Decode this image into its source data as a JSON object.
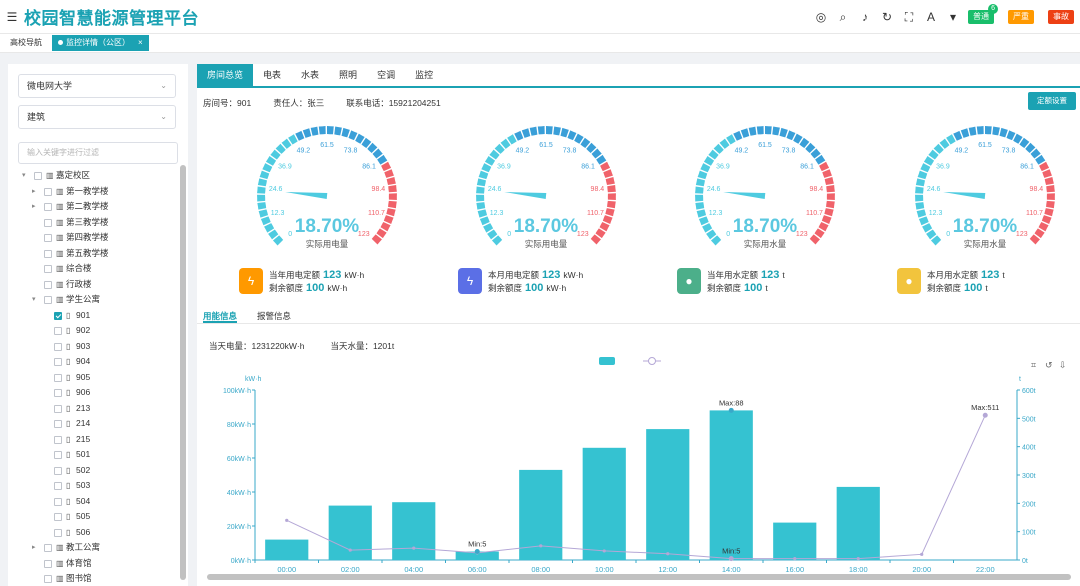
{
  "app": {
    "title": "校园智慧能源管理平台",
    "menu_icon": "menu-icon",
    "toolbar_icons": [
      "circle-icon",
      "search-icon",
      "volume-icon",
      "refresh-icon",
      "fullscreen-icon",
      "font-icon",
      "shirt-icon"
    ],
    "buttons": [
      {
        "label": "普通",
        "color": "#19be6b",
        "count": "6"
      },
      {
        "label": "严重",
        "color": "#ff9900",
        "count": ""
      },
      {
        "label": "事故",
        "color": "#ed4014",
        "count": ""
      }
    ]
  },
  "page_tabs": [
    {
      "label": "高校导航",
      "active": false
    },
    {
      "label": "监控详情（公区）",
      "active": true,
      "close": "×"
    }
  ],
  "sidebar": {
    "school": "微电网大学",
    "category": "建筑",
    "search_placeholder": "输入关键字进行过滤",
    "tree": [
      {
        "label": "嘉定校区",
        "level": 0,
        "arrow": "▾",
        "icon": "building"
      },
      {
        "label": "第一教学楼",
        "level": 1,
        "arrow": "▸",
        "icon": "building"
      },
      {
        "label": "第二教学楼",
        "level": 1,
        "arrow": "▸",
        "icon": "building"
      },
      {
        "label": "第三教学楼",
        "level": 1,
        "arrow": "",
        "icon": "building"
      },
      {
        "label": "第四教学楼",
        "level": 1,
        "arrow": "",
        "icon": "building"
      },
      {
        "label": "第五教学楼",
        "level": 1,
        "arrow": "",
        "icon": "building"
      },
      {
        "label": "综合楼",
        "level": 1,
        "arrow": "",
        "icon": "building"
      },
      {
        "label": "行政楼",
        "level": 1,
        "arrow": "",
        "icon": "building"
      },
      {
        "label": "学生公寓",
        "level": 1,
        "arrow": "▾",
        "icon": "building"
      },
      {
        "label": "901",
        "level": 2,
        "arrow": "",
        "icon": "room",
        "checked": true
      },
      {
        "label": "902",
        "level": 2,
        "arrow": "",
        "icon": "room"
      },
      {
        "label": "903",
        "level": 2,
        "arrow": "",
        "icon": "room"
      },
      {
        "label": "904",
        "level": 2,
        "arrow": "",
        "icon": "room"
      },
      {
        "label": "905",
        "level": 2,
        "arrow": "",
        "icon": "room"
      },
      {
        "label": "906",
        "level": 2,
        "arrow": "",
        "icon": "room"
      },
      {
        "label": "213",
        "level": 2,
        "arrow": "",
        "icon": "room"
      },
      {
        "label": "214",
        "level": 2,
        "arrow": "",
        "icon": "room"
      },
      {
        "label": "215",
        "level": 2,
        "arrow": "",
        "icon": "room"
      },
      {
        "label": "501",
        "level": 2,
        "arrow": "",
        "icon": "room"
      },
      {
        "label": "502",
        "level": 2,
        "arrow": "",
        "icon": "room"
      },
      {
        "label": "503",
        "level": 2,
        "arrow": "",
        "icon": "room"
      },
      {
        "label": "504",
        "level": 2,
        "arrow": "",
        "icon": "room"
      },
      {
        "label": "505",
        "level": 2,
        "arrow": "",
        "icon": "room"
      },
      {
        "label": "506",
        "level": 2,
        "arrow": "",
        "icon": "room"
      },
      {
        "label": "教工公寓",
        "level": 1,
        "arrow": "▸",
        "icon": "building"
      },
      {
        "label": "体育馆",
        "level": 1,
        "arrow": "",
        "icon": "building"
      },
      {
        "label": "图书馆",
        "level": 1,
        "arrow": "",
        "icon": "building"
      }
    ]
  },
  "main": {
    "tabs": [
      "房间总览",
      "电表",
      "水表",
      "照明",
      "空调",
      "监控"
    ],
    "active_tab": 0,
    "info": {
      "room": "房间号：901",
      "owner": "责任人：张三",
      "phone": "联系电话：15921204251"
    },
    "quota_button": "定额设置",
    "gauges": [
      {
        "value": "18.70%",
        "label": "实际用电量",
        "icon": "lightning-icon",
        "icon_glyph": "ϟ",
        "icon_color": "#ff9900",
        "quota_label": "当年用电定额",
        "quota_value": "123",
        "quota_unit": "kW·h",
        "remain_label": "剩余额度",
        "remain_value": "100",
        "remain_unit": "kW·h"
      },
      {
        "value": "18.70%",
        "label": "实际用电量",
        "icon": "lightning-icon",
        "icon_glyph": "ϟ",
        "icon_color": "#5b6fe6",
        "quota_label": "本月用电定额",
        "quota_value": "123",
        "quota_unit": "kW·h",
        "remain_label": "剩余额度",
        "remain_value": "100",
        "remain_unit": "kW·h"
      },
      {
        "value": "18.70%",
        "label": "实际用水量",
        "icon": "water-drop-icon",
        "icon_glyph": "●",
        "icon_color": "#4caf8a",
        "quota_label": "当年用水定额",
        "quota_value": "123",
        "quota_unit": "t",
        "remain_label": "剩余额度",
        "remain_value": "100",
        "remain_unit": "t"
      },
      {
        "value": "18.70%",
        "label": "实际用水量",
        "icon": "water-drop-icon",
        "icon_glyph": "●",
        "icon_color": "#f2c43d",
        "quota_label": "本月用水定额",
        "quota_value": "123",
        "quota_unit": "t",
        "remain_label": "剩余额度",
        "remain_value": "100",
        "remain_unit": "t"
      }
    ],
    "gauge_ticks": [
      "0",
      "12.3",
      "24.6",
      "36.9",
      "49.2",
      "61.5",
      "73.8",
      "86.1",
      "98.4",
      "110.7",
      "123"
    ],
    "gauge_colors": {
      "low": "#4ecbe0",
      "mid": "#3a9fd8",
      "high": "#f0626a"
    },
    "subtabs": [
      "用能信息",
      "报警信息"
    ],
    "stats": {
      "electricity": "当天电量：1231220kW·h",
      "water": "当天水量：1201t"
    }
  },
  "chart_data": {
    "type": "bar",
    "x": [
      "00:00",
      "02:00",
      "04:00",
      "06:00",
      "08:00",
      "10:00",
      "12:00",
      "14:00",
      "16:00",
      "18:00",
      "20:00",
      "22:00"
    ],
    "series": [
      {
        "type": "bar",
        "axis": "left",
        "color": "#35c2d1",
        "values": [
          12000,
          32000,
          34000,
          5000,
          53000,
          66000,
          77000,
          88000,
          22000,
          43000,
          null,
          null
        ]
      },
      {
        "type": "line",
        "axis": "right",
        "color": "#b4a7d6",
        "values": [
          140,
          35,
          42,
          25,
          50,
          32,
          22,
          5,
          5,
          5,
          20,
          511
        ]
      }
    ],
    "y_left": {
      "label": "kW·h",
      "ticks": [
        "0kW·h",
        "20kW·h",
        "40kW·h",
        "60kW·h",
        "80kW·h",
        "100kW·h"
      ],
      "max": 100000
    },
    "y_right": {
      "label": "t",
      "ticks": [
        "0t",
        "100t",
        "200t",
        "300t",
        "400t",
        "500t",
        "600t"
      ],
      "max": 600
    },
    "annotations": [
      {
        "text": "Max:88",
        "x": "14:00",
        "series": 0
      },
      {
        "text": "Min:5",
        "x": "06:00",
        "series": 0
      },
      {
        "text": "Max:511",
        "x": "22:00",
        "series": 1
      },
      {
        "text": "Min:5",
        "x": "14:00",
        "series": 1
      }
    ],
    "grid": false,
    "toolbox_icons": [
      "crop-icon",
      "restore-icon",
      "download-icon"
    ]
  }
}
